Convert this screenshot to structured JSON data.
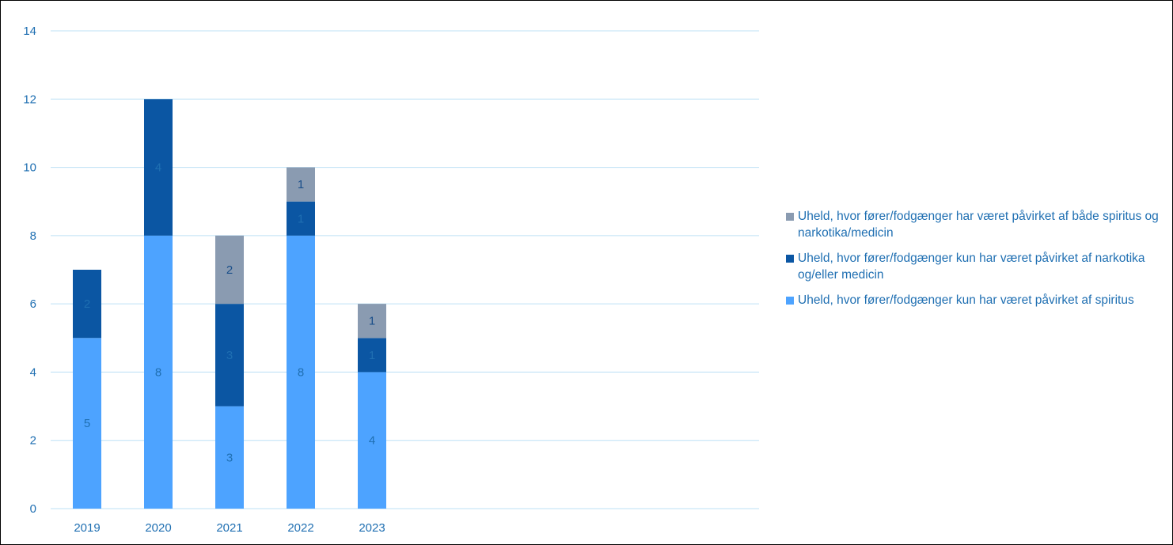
{
  "chart_data": {
    "type": "bar",
    "stacked": true,
    "categories": [
      "2019",
      "2020",
      "2021",
      "2022",
      "2023"
    ],
    "series": [
      {
        "name": "Uheld, hvor fører/fodgænger kun har været påvirket af spiritus",
        "color": "#4da3ff",
        "values": [
          5,
          8,
          3,
          8,
          4
        ]
      },
      {
        "name": "Uheld, hvor fører/fodgænger kun har været påvirket af narkotika og/eller medicin",
        "color": "#0b56a3",
        "values": [
          2,
          4,
          3,
          1,
          1
        ]
      },
      {
        "name": "Uheld, hvor fører/fodgænger har været påvirket af både spiritus og narkotika/medicin",
        "color": "#8a9bb1",
        "values": [
          0,
          0,
          2,
          1,
          1
        ]
      }
    ],
    "yticks": [
      "0",
      "2",
      "4",
      "6",
      "8",
      "10",
      "12",
      "14"
    ],
    "ylim": [
      0,
      14
    ],
    "grid": true,
    "legend_position": "right",
    "data_labels": true
  },
  "legend": {
    "items": [
      {
        "label": "Uheld, hvor fører/fodgænger har været påvirket af både spiritus og narkotika/medicin",
        "color": "#8a9bb1"
      },
      {
        "label": "Uheld, hvor fører/fodgænger kun har været påvirket af narkotika og/eller medicin",
        "color": "#0b56a3"
      },
      {
        "label": "Uheld, hvor fører/fodgænger kun har været påvirket af spiritus",
        "color": "#4da3ff"
      }
    ]
  }
}
